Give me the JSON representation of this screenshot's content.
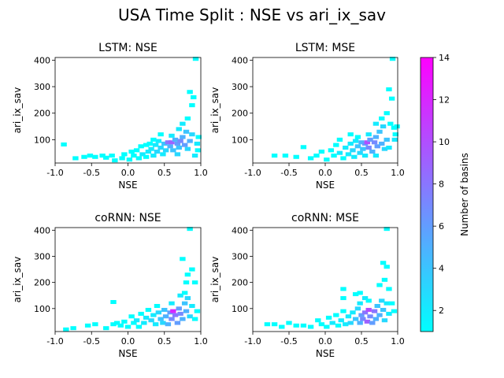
{
  "figure": {
    "title": "USA Time Split : NSE vs ari_ix_sav"
  },
  "colorbar": {
    "label": "Number of basins",
    "min": 1,
    "max": 14,
    "ticks": [
      2,
      4,
      6,
      8,
      10,
      12,
      14
    ],
    "colormap": "cool",
    "color_low": "#00ffff",
    "color_high": "#ff00ff"
  },
  "chart_data": [
    {
      "type": "heatmap",
      "title": "LSTM: NSE",
      "xlabel": "NSE",
      "ylabel": "ari_ix_sav",
      "xlim": [
        -1.0,
        1.0
      ],
      "ylim": [
        12,
        410
      ],
      "xticks": [
        "-1.0",
        "-0.5",
        "0.0",
        "0.5",
        "1.0"
      ],
      "yticks": [
        "100",
        "200",
        "300",
        "400"
      ],
      "cells": [
        [
          -0.88,
          82,
          1
        ],
        [
          -0.72,
          30,
          1
        ],
        [
          -0.6,
          35,
          1
        ],
        [
          -0.52,
          40,
          1
        ],
        [
          -0.45,
          35,
          1
        ],
        [
          -0.35,
          40,
          1
        ],
        [
          -0.3,
          32,
          1
        ],
        [
          -0.22,
          40,
          1
        ],
        [
          -0.18,
          22,
          1
        ],
        [
          -0.08,
          30,
          1
        ],
        [
          -0.05,
          45,
          1
        ],
        [
          0.02,
          25,
          1
        ],
        [
          0.05,
          55,
          1
        ],
        [
          0.08,
          40,
          1
        ],
        [
          0.12,
          60,
          1
        ],
        [
          0.15,
          30,
          1
        ],
        [
          0.18,
          75,
          1
        ],
        [
          0.2,
          45,
          2
        ],
        [
          0.25,
          35,
          1
        ],
        [
          0.28,
          55,
          2
        ],
        [
          0.3,
          85,
          1
        ],
        [
          0.32,
          65,
          2
        ],
        [
          0.35,
          40,
          2
        ],
        [
          0.38,
          80,
          2
        ],
        [
          0.4,
          55,
          3
        ],
        [
          0.42,
          95,
          2
        ],
        [
          0.45,
          70,
          3
        ],
        [
          0.48,
          45,
          2
        ],
        [
          0.5,
          85,
          4
        ],
        [
          0.52,
          60,
          3
        ],
        [
          0.55,
          90,
          8
        ],
        [
          0.58,
          75,
          5
        ],
        [
          0.6,
          90,
          9
        ],
        [
          0.62,
          60,
          4
        ],
        [
          0.65,
          100,
          5
        ],
        [
          0.68,
          85,
          6
        ],
        [
          0.7,
          70,
          4
        ],
        [
          0.72,
          95,
          7
        ],
        [
          0.75,
          110,
          5
        ],
        [
          0.78,
          80,
          6
        ],
        [
          0.8,
          130,
          4
        ],
        [
          0.82,
          65,
          3
        ],
        [
          0.85,
          95,
          5
        ],
        [
          0.88,
          120,
          3
        ],
        [
          0.7,
          140,
          2
        ],
        [
          0.75,
          160,
          2
        ],
        [
          0.82,
          180,
          1
        ],
        [
          0.88,
          230,
          1
        ],
        [
          0.85,
          280,
          1
        ],
        [
          0.9,
          260,
          1
        ],
        [
          0.92,
          40,
          2
        ],
        [
          0.95,
          85,
          2
        ],
        [
          0.97,
          110,
          1
        ],
        [
          0.93,
          405,
          1
        ],
        [
          0.96,
          60,
          1
        ],
        [
          0.6,
          115,
          2
        ],
        [
          0.45,
          120,
          1
        ],
        [
          0.35,
          100,
          1
        ],
        [
          0.25,
          80,
          1
        ],
        [
          0.68,
          45,
          3
        ]
      ]
    },
    {
      "type": "heatmap",
      "title": "LSTM: MSE",
      "xlabel": "NSE",
      "ylabel": "ari_ix_sav",
      "xlim": [
        -1.0,
        1.0
      ],
      "ylim": [
        12,
        410
      ],
      "xticks": [
        "-1.0",
        "-0.5",
        "0.0",
        "0.5",
        "1.0"
      ],
      "yticks": [
        "100",
        "200",
        "300",
        "400"
      ],
      "cells": [
        [
          -0.7,
          40,
          1
        ],
        [
          -0.55,
          40,
          1
        ],
        [
          -0.4,
          35,
          1
        ],
        [
          -0.3,
          72,
          1
        ],
        [
          -0.2,
          30,
          1
        ],
        [
          -0.12,
          40,
          1
        ],
        [
          -0.05,
          55,
          1
        ],
        [
          0.02,
          25,
          1
        ],
        [
          0.08,
          60,
          1
        ],
        [
          0.12,
          40,
          1
        ],
        [
          0.15,
          80,
          1
        ],
        [
          0.2,
          50,
          2
        ],
        [
          0.25,
          30,
          1
        ],
        [
          0.28,
          70,
          2
        ],
        [
          0.32,
          45,
          2
        ],
        [
          0.35,
          85,
          2
        ],
        [
          0.38,
          60,
          3
        ],
        [
          0.42,
          95,
          2
        ],
        [
          0.45,
          75,
          4
        ],
        [
          0.48,
          50,
          3
        ],
        [
          0.5,
          90,
          5
        ],
        [
          0.52,
          65,
          4
        ],
        [
          0.55,
          85,
          6
        ],
        [
          0.58,
          90,
          10
        ],
        [
          0.6,
          70,
          7
        ],
        [
          0.62,
          100,
          6
        ],
        [
          0.65,
          55,
          5
        ],
        [
          0.68,
          90,
          7
        ],
        [
          0.7,
          110,
          5
        ],
        [
          0.72,
          75,
          6
        ],
        [
          0.75,
          130,
          4
        ],
        [
          0.78,
          85,
          5
        ],
        [
          0.8,
          150,
          3
        ],
        [
          0.82,
          65,
          3
        ],
        [
          0.85,
          100,
          4
        ],
        [
          0.88,
          70,
          2
        ],
        [
          0.7,
          160,
          2
        ],
        [
          0.78,
          180,
          1
        ],
        [
          0.85,
          200,
          1
        ],
        [
          0.9,
          160,
          1
        ],
        [
          0.88,
          290,
          1
        ],
        [
          0.92,
          255,
          1
        ],
        [
          0.95,
          145,
          1
        ],
        [
          0.97,
          120,
          1
        ],
        [
          0.93,
          405,
          1
        ],
        [
          0.96,
          100,
          2
        ],
        [
          0.99,
          150,
          1
        ],
        [
          0.6,
          120,
          2
        ],
        [
          0.45,
          110,
          1
        ],
        [
          0.35,
          120,
          1
        ],
        [
          0.2,
          100,
          1
        ],
        [
          0.4,
          35,
          2
        ],
        [
          0.55,
          40,
          2
        ],
        [
          0.7,
          40,
          2
        ]
      ]
    },
    {
      "type": "heatmap",
      "title": "coRNN: NSE",
      "xlabel": "NSE",
      "ylabel": "ari_ix_sav",
      "xlim": [
        -1.0,
        1.0
      ],
      "ylim": [
        12,
        410
      ],
      "xticks": [
        "-1.0",
        "-0.5",
        "0.0",
        "0.5",
        "1.0"
      ],
      "yticks": [
        "100",
        "200",
        "300",
        "400"
      ],
      "cells": [
        [
          -0.85,
          20,
          1
        ],
        [
          -0.75,
          25,
          1
        ],
        [
          -0.55,
          35,
          1
        ],
        [
          -0.45,
          40,
          1
        ],
        [
          -0.3,
          25,
          1
        ],
        [
          -0.2,
          40,
          1
        ],
        [
          -0.15,
          45,
          1
        ],
        [
          -0.2,
          125,
          1
        ],
        [
          -0.1,
          35,
          1
        ],
        [
          -0.05,
          50,
          1
        ],
        [
          0.0,
          30,
          1
        ],
        [
          0.05,
          70,
          1
        ],
        [
          0.08,
          45,
          1
        ],
        [
          0.12,
          55,
          2
        ],
        [
          0.15,
          30,
          1
        ],
        [
          0.18,
          80,
          1
        ],
        [
          0.22,
          45,
          2
        ],
        [
          0.25,
          65,
          2
        ],
        [
          0.28,
          95,
          1
        ],
        [
          0.32,
          55,
          3
        ],
        [
          0.35,
          75,
          2
        ],
        [
          0.38,
          40,
          2
        ],
        [
          0.42,
          85,
          3
        ],
        [
          0.45,
          60,
          4
        ],
        [
          0.48,
          45,
          3
        ],
        [
          0.5,
          95,
          4
        ],
        [
          0.52,
          70,
          5
        ],
        [
          0.55,
          40,
          5
        ],
        [
          0.58,
          85,
          6
        ],
        [
          0.6,
          60,
          7
        ],
        [
          0.62,
          90,
          12
        ],
        [
          0.65,
          75,
          8
        ],
        [
          0.68,
          45,
          6
        ],
        [
          0.7,
          100,
          6
        ],
        [
          0.72,
          80,
          7
        ],
        [
          0.75,
          60,
          5
        ],
        [
          0.78,
          120,
          4
        ],
        [
          0.8,
          90,
          5
        ],
        [
          0.82,
          140,
          3
        ],
        [
          0.85,
          70,
          3
        ],
        [
          0.88,
          110,
          2
        ],
        [
          0.72,
          150,
          2
        ],
        [
          0.78,
          160,
          1
        ],
        [
          0.8,
          200,
          1
        ],
        [
          0.88,
          250,
          1
        ],
        [
          0.75,
          290,
          1
        ],
        [
          0.82,
          230,
          1
        ],
        [
          0.92,
          200,
          1
        ],
        [
          0.85,
          405,
          1
        ],
        [
          0.6,
          120,
          2
        ],
        [
          0.4,
          110,
          1
        ],
        [
          0.92,
          60,
          1
        ],
        [
          0.95,
          90,
          1
        ]
      ]
    },
    {
      "type": "heatmap",
      "title": "coRNN: MSE",
      "xlabel": "NSE",
      "ylabel": "ari_ix_sav",
      "xlim": [
        -1.0,
        1.0
      ],
      "ylim": [
        12,
        410
      ],
      "xticks": [
        "-1.0",
        "-0.5",
        "0.0",
        "0.5",
        "1.0"
      ],
      "yticks": [
        "100",
        "200",
        "300",
        "400"
      ],
      "cells": [
        [
          -0.8,
          40,
          1
        ],
        [
          -0.7,
          40,
          1
        ],
        [
          -0.6,
          30,
          1
        ],
        [
          -0.5,
          45,
          1
        ],
        [
          -0.4,
          35,
          1
        ],
        [
          -0.3,
          35,
          1
        ],
        [
          -0.2,
          30,
          1
        ],
        [
          -0.1,
          55,
          1
        ],
        [
          -0.05,
          40,
          1
        ],
        [
          0.02,
          30,
          1
        ],
        [
          0.05,
          65,
          1
        ],
        [
          0.1,
          45,
          2
        ],
        [
          0.15,
          75,
          1
        ],
        [
          0.18,
          35,
          1
        ],
        [
          0.22,
          55,
          2
        ],
        [
          0.25,
          90,
          1
        ],
        [
          0.28,
          40,
          2
        ],
        [
          0.32,
          70,
          2
        ],
        [
          0.35,
          45,
          3
        ],
        [
          0.38,
          85,
          2
        ],
        [
          0.42,
          60,
          4
        ],
        [
          0.45,
          100,
          3
        ],
        [
          0.48,
          45,
          5
        ],
        [
          0.5,
          75,
          6
        ],
        [
          0.52,
          60,
          7
        ],
        [
          0.55,
          85,
          8
        ],
        [
          0.58,
          50,
          9
        ],
        [
          0.6,
          95,
          10
        ],
        [
          0.62,
          70,
          7
        ],
        [
          0.65,
          45,
          6
        ],
        [
          0.68,
          90,
          8
        ],
        [
          0.7,
          60,
          5
        ],
        [
          0.72,
          110,
          4
        ],
        [
          0.75,
          75,
          5
        ],
        [
          0.78,
          130,
          3
        ],
        [
          0.8,
          95,
          4
        ],
        [
          0.82,
          55,
          3
        ],
        [
          0.85,
          120,
          2
        ],
        [
          0.88,
          80,
          2
        ],
        [
          0.55,
          140,
          2
        ],
        [
          0.6,
          130,
          1
        ],
        [
          0.25,
          140,
          1
        ],
        [
          0.25,
          175,
          1
        ],
        [
          0.42,
          155,
          1
        ],
        [
          0.48,
          160,
          1
        ],
        [
          0.75,
          190,
          1
        ],
        [
          0.8,
          275,
          1
        ],
        [
          0.85,
          260,
          1
        ],
        [
          0.82,
          210,
          1
        ],
        [
          0.88,
          175,
          1
        ],
        [
          0.85,
          405,
          1
        ],
        [
          0.92,
          120,
          1
        ],
        [
          0.95,
          90,
          1
        ],
        [
          0.48,
          120,
          2
        ]
      ]
    }
  ]
}
